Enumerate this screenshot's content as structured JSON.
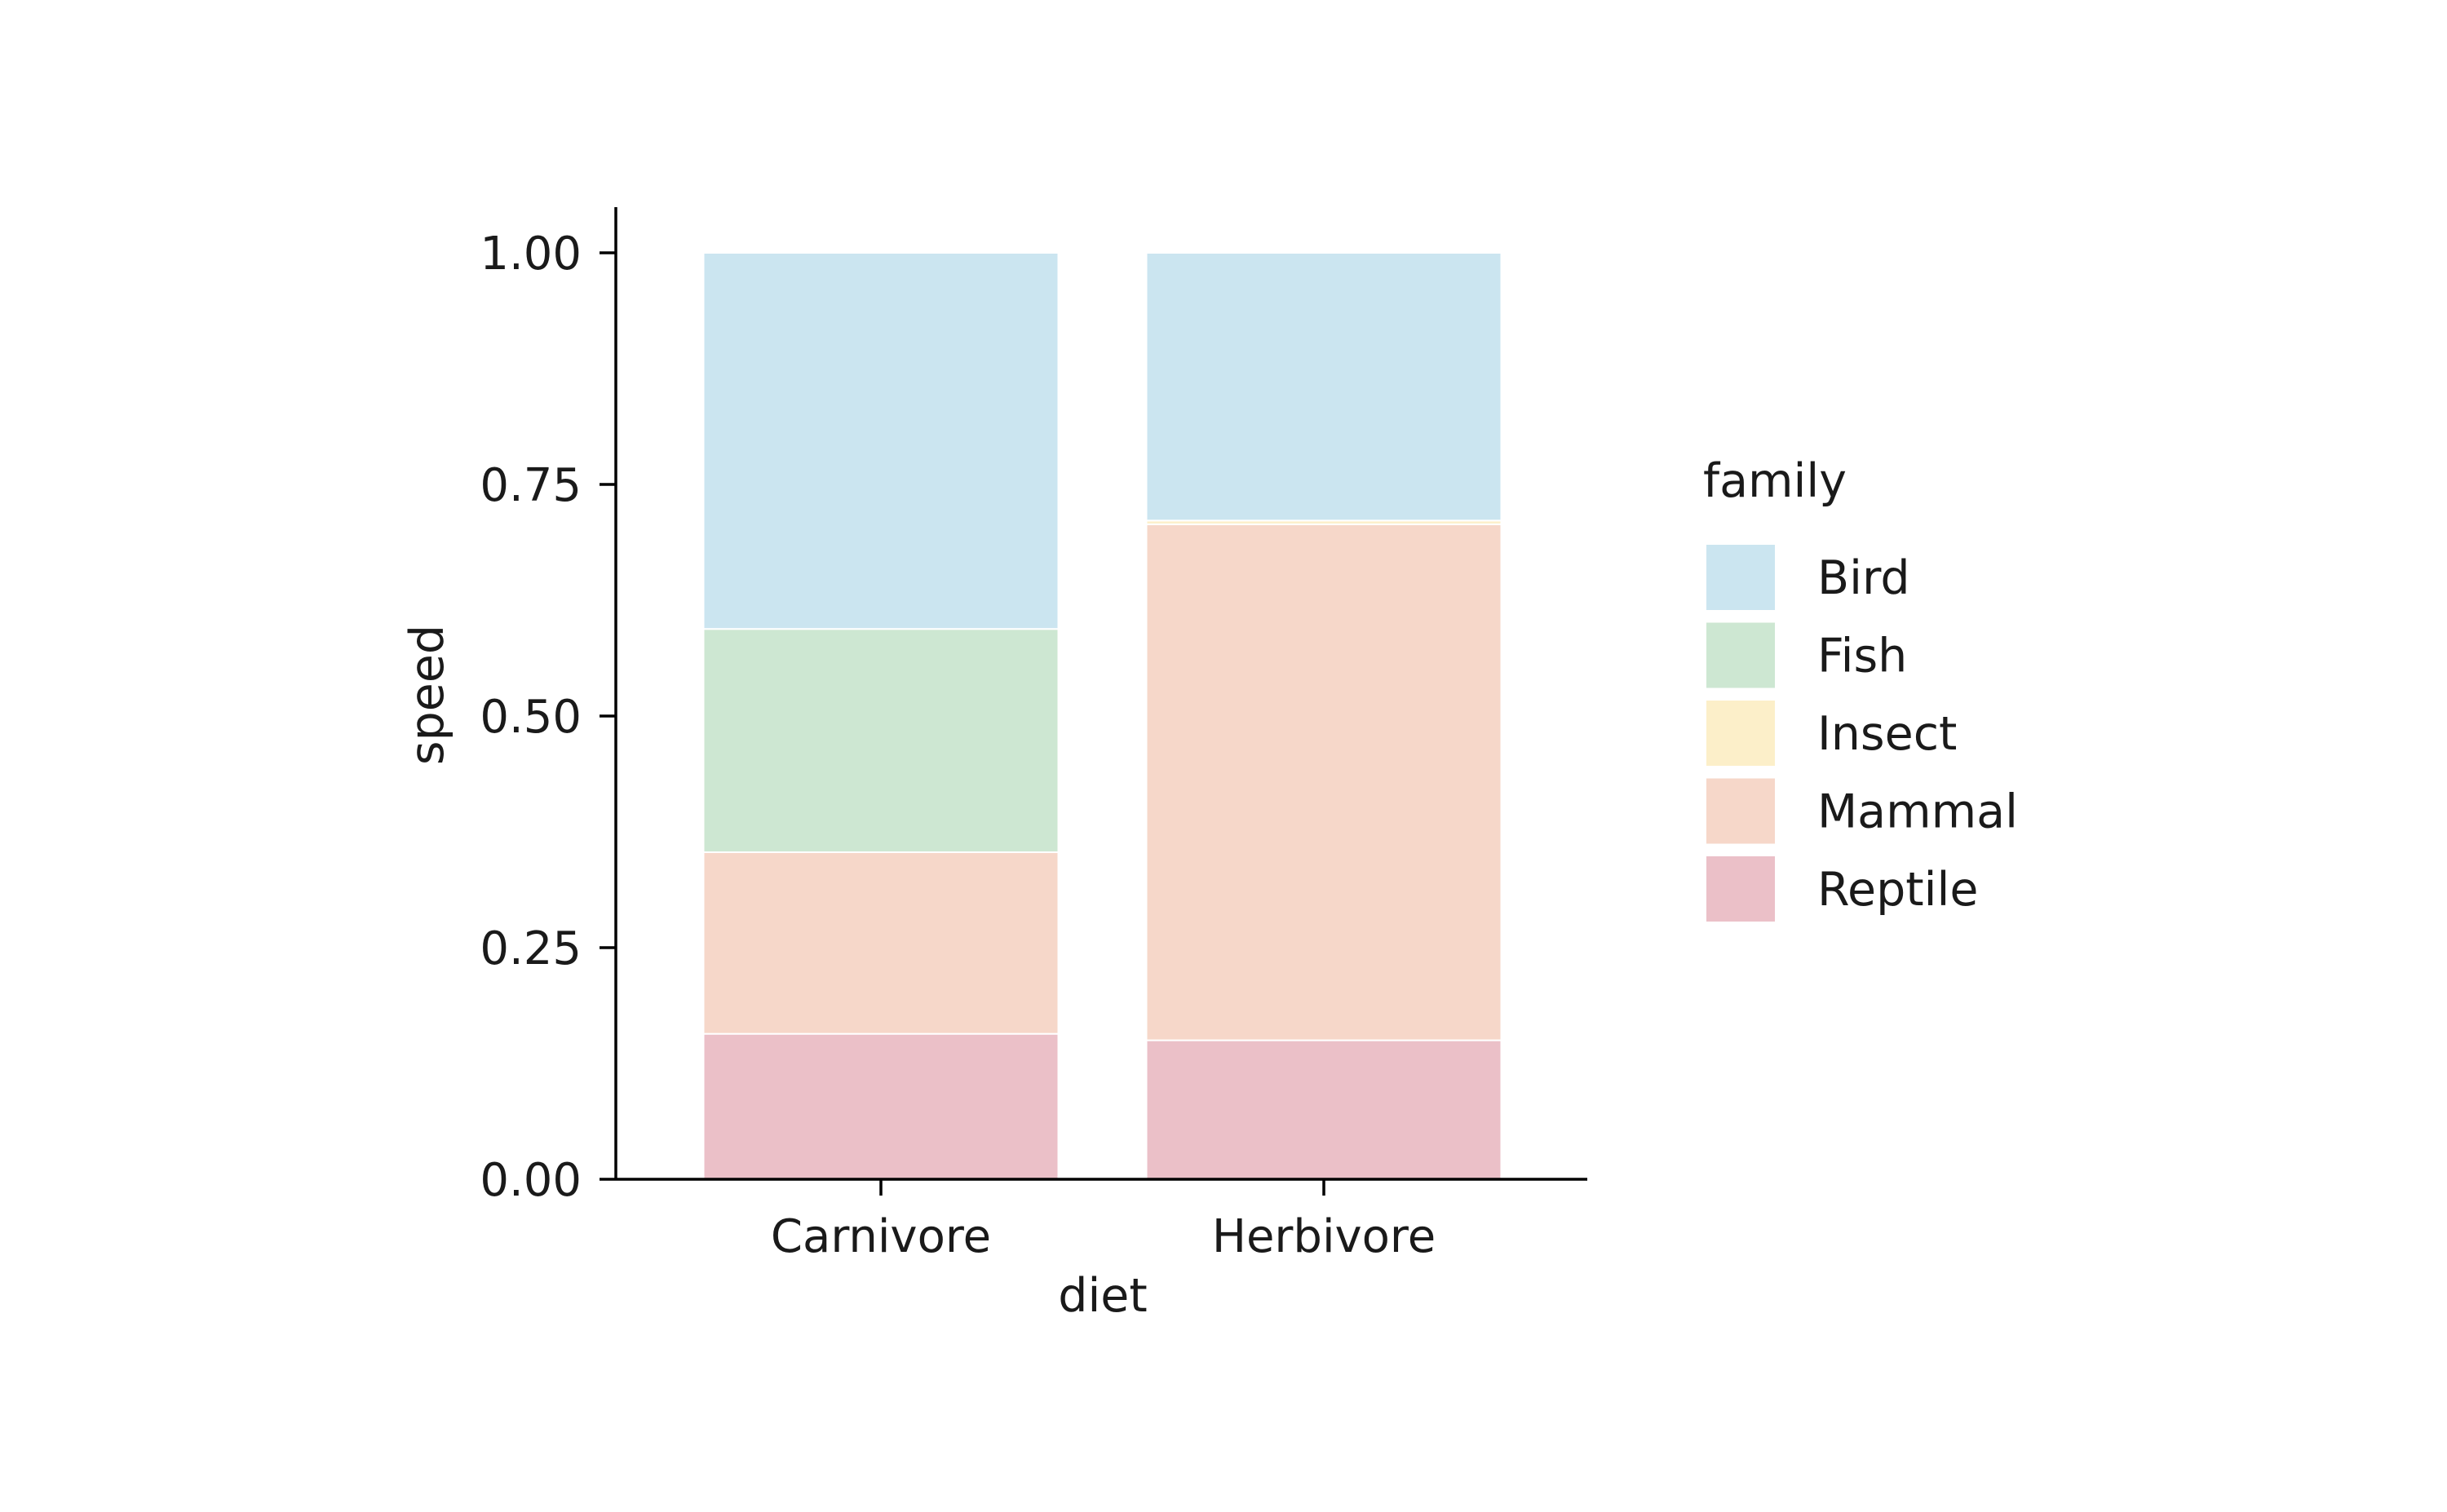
{
  "chart_data": {
    "type": "bar",
    "stacked": true,
    "xlabel": "diet",
    "ylabel": "speed",
    "ylim": [
      0,
      1.05
    ],
    "y_ticks": [
      0.0,
      0.25,
      0.5,
      0.75,
      1.0
    ],
    "y_tick_labels": [
      "0.00",
      "0.25",
      "0.50",
      "0.75",
      "1.00"
    ],
    "categories": [
      "Carnivore",
      "Herbivore"
    ],
    "series": [
      {
        "name": "Reptile",
        "color": "#ebc0c8",
        "values": [
          0.157,
          0.15
        ]
      },
      {
        "name": "Mammal",
        "color": "#f6d7c9",
        "values": [
          0.196,
          0.557
        ]
      },
      {
        "name": "Insect",
        "color": "#fcefc9",
        "values": [
          0.0,
          0.004
        ]
      },
      {
        "name": "Fish",
        "color": "#cde7d2",
        "values": [
          0.241,
          0.0
        ]
      },
      {
        "name": "Bird",
        "color": "#cbe5f0",
        "values": [
          0.406,
          0.289
        ]
      }
    ],
    "legend": {
      "title": "family",
      "placement": "right",
      "entries": [
        "Bird",
        "Fish",
        "Insect",
        "Mammal",
        "Reptile"
      ]
    },
    "grid": false
  }
}
